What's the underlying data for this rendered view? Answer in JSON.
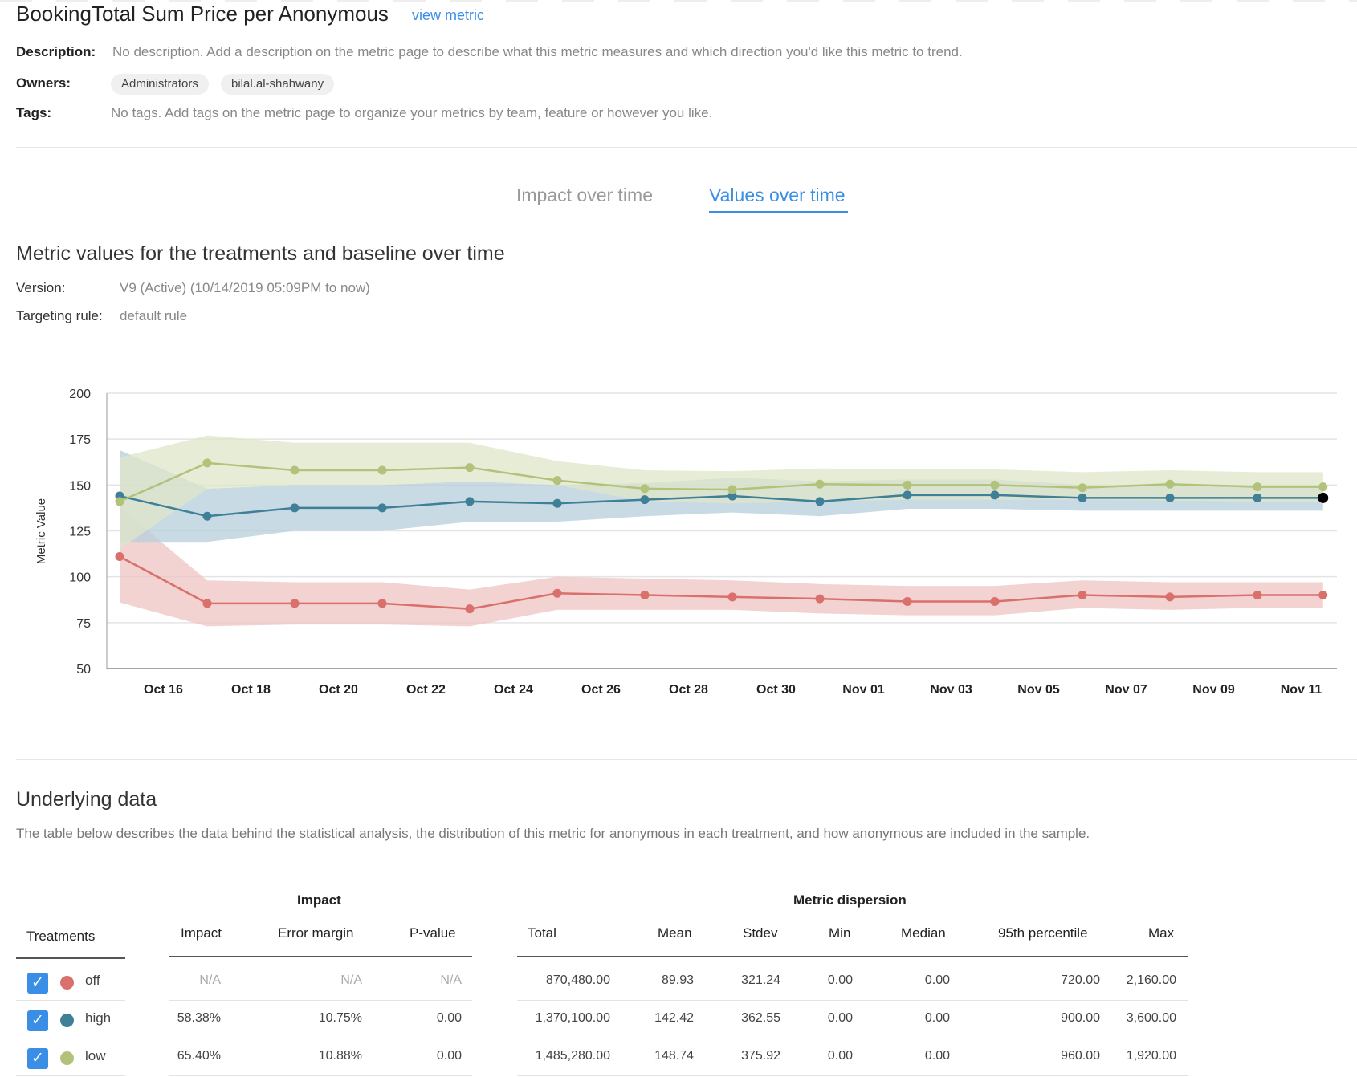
{
  "header": {
    "title": "BookingTotal Sum Price per Anonymous",
    "view_link": "view metric"
  },
  "info": {
    "description_label": "Description:",
    "description": "No description. Add a description on the metric page to describe what this metric measures and which direction you'd like this metric to trend.",
    "owners_label": "Owners:",
    "owners": [
      "Administrators",
      "bilal.al-shahwany"
    ],
    "tags_label": "Tags:",
    "tags": "No tags. Add tags on the metric page to organize your metrics by team, feature or however you like."
  },
  "tabs": [
    {
      "label": "Impact over time",
      "active": false
    },
    {
      "label": "Values over time",
      "active": true
    }
  ],
  "section": {
    "title": "Metric values for the treatments and baseline over time",
    "version_label": "Version:",
    "version": "V9 (Active) (10/14/2019 05:09PM to now)",
    "targeting_label": "Targeting rule:",
    "targeting": "default rule"
  },
  "chart_data": {
    "type": "line",
    "ylabel": "Metric Value",
    "xlabel": "",
    "ylim": [
      50,
      200
    ],
    "yticks": [
      50,
      75,
      100,
      125,
      150,
      175,
      200
    ],
    "xticks": [
      "Oct 16",
      "Oct 18",
      "Oct 20",
      "Oct 22",
      "Oct 24",
      "Oct 26",
      "Oct 28",
      "Oct 30",
      "Nov 01",
      "Nov 03",
      "Nov 05",
      "Nov 07",
      "Nov 09",
      "Nov 11"
    ],
    "xtick_dates": [
      "2019-10-16",
      "2019-10-18",
      "2019-10-20",
      "2019-10-22",
      "2019-10-24",
      "2019-10-26",
      "2019-10-28",
      "2019-10-30",
      "2019-11-01",
      "2019-11-03",
      "2019-11-05",
      "2019-11-07",
      "2019-11-09",
      "2019-11-11"
    ],
    "grid": true,
    "x": [
      "2019-10-15",
      "2019-10-17",
      "2019-10-19",
      "2019-10-21",
      "2019-10-23",
      "2019-10-25",
      "2019-10-27",
      "2019-10-29",
      "2019-10-31",
      "2019-11-02",
      "2019-11-04",
      "2019-11-06",
      "2019-11-08",
      "2019-11-10",
      "2019-11-11T12:00"
    ],
    "series": [
      {
        "name": "off",
        "color": "#d9706c",
        "band_color": "#efc3c3",
        "values": [
          111,
          85.5,
          85.5,
          85.5,
          82.5,
          91,
          90,
          89,
          88,
          86.5,
          86.5,
          90,
          89,
          90,
          90
        ],
        "upper": [
          138,
          98,
          97,
          97,
          93,
          100,
          99,
          98,
          96,
          95,
          95,
          98,
          97,
          97,
          97
        ],
        "lower": [
          86,
          73,
          74,
          74,
          73,
          82,
          82,
          82,
          80,
          79,
          79,
          83,
          82,
          83,
          83
        ]
      },
      {
        "name": "high",
        "color": "#3f7f98",
        "band_color": "#b5cfdb",
        "values": [
          144,
          133,
          137.5,
          137.5,
          141,
          140,
          142,
          144,
          141,
          144.5,
          144.5,
          143,
          143,
          143,
          143
        ],
        "upper": [
          169,
          148,
          150,
          150,
          152,
          150,
          151,
          154,
          152,
          153,
          153,
          150,
          150,
          150,
          150
        ],
        "lower": [
          119,
          119,
          125,
          125,
          130,
          130,
          133,
          135,
          133,
          137,
          137,
          136,
          136,
          136,
          136
        ]
      },
      {
        "name": "low",
        "color": "#b3c27a",
        "band_color": "#dfe5c8",
        "values": [
          141,
          162,
          158,
          158,
          159.5,
          152.5,
          148,
          147.5,
          150.5,
          150,
          150,
          148.5,
          150.5,
          149,
          149
        ],
        "upper": [
          165,
          177,
          173,
          173,
          173,
          163,
          158,
          157.5,
          159,
          158.5,
          158.5,
          157,
          158,
          157,
          157
        ],
        "lower": [
          115,
          148,
          150,
          150,
          152,
          150,
          141,
          140,
          141,
          142,
          142,
          142,
          141.5,
          141,
          141
        ]
      }
    ]
  },
  "underlying": {
    "title": "Underlying data",
    "description": "The table below describes the data behind the statistical analysis, the distribution of this metric for anonymous in each treatment, and how anonymous are included in the sample.",
    "impact_group": "Impact",
    "dispersion_group": "Metric dispersion",
    "columns": {
      "treatments": "Treatments",
      "impact": "Impact",
      "error_margin": "Error margin",
      "p_value": "P-value",
      "total": "Total",
      "mean": "Mean",
      "stdev": "Stdev",
      "min": "Min",
      "median": "Median",
      "p95": "95th percentile",
      "max": "Max"
    },
    "rows": [
      {
        "name": "off",
        "color": "#d9706c",
        "checked": true,
        "impact": "N/A",
        "error_margin": "N/A",
        "p_value": "N/A",
        "total": "870,480.00",
        "mean": "89.93",
        "stdev": "321.24",
        "min": "0.00",
        "median": "0.00",
        "p95": "720.00",
        "max": "2,160.00"
      },
      {
        "name": "high",
        "color": "#3f7f98",
        "checked": true,
        "impact": "58.38%",
        "error_margin": "10.75%",
        "p_value": "0.00",
        "total": "1,370,100.00",
        "mean": "142.42",
        "stdev": "362.55",
        "min": "0.00",
        "median": "0.00",
        "p95": "900.00",
        "max": "3,600.00"
      },
      {
        "name": "low",
        "color": "#b3c27a",
        "checked": true,
        "impact": "65.40%",
        "error_margin": "10.88%",
        "p_value": "0.00",
        "total": "1,485,280.00",
        "mean": "148.74",
        "stdev": "375.92",
        "min": "0.00",
        "median": "0.00",
        "p95": "960.00",
        "max": "1,920.00"
      }
    ],
    "check_icon": "✓"
  }
}
